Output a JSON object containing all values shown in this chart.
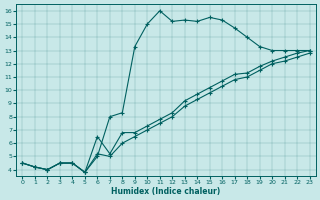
{
  "xlabel": "Humidex (Indice chaleur)",
  "bg_color": "#c8e8e8",
  "line_color": "#006060",
  "xlim": [
    -0.5,
    23.5
  ],
  "ylim": [
    3.5,
    16.5
  ],
  "xticks": [
    0,
    1,
    2,
    3,
    4,
    5,
    6,
    7,
    8,
    9,
    10,
    11,
    12,
    13,
    14,
    15,
    16,
    17,
    18,
    19,
    20,
    21,
    22,
    23
  ],
  "yticks": [
    4,
    5,
    6,
    7,
    8,
    9,
    10,
    11,
    12,
    13,
    14,
    15,
    16
  ],
  "curve1_x": [
    0,
    1,
    2,
    3,
    4,
    5,
    6,
    7,
    8,
    9,
    10,
    11,
    12,
    13,
    14,
    15,
    16,
    17,
    18,
    19,
    20,
    21,
    22,
    23
  ],
  "curve1_y": [
    4.5,
    4.2,
    4.0,
    4.5,
    4.5,
    3.8,
    5.0,
    8.0,
    8.3,
    13.3,
    15.0,
    16.0,
    15.2,
    15.3,
    15.2,
    15.5,
    15.3,
    14.7,
    14.0,
    13.3,
    13.0,
    13.0,
    13.0,
    13.0
  ],
  "curve2_x": [
    0,
    1,
    2,
    3,
    4,
    5,
    6,
    7,
    8,
    9,
    10,
    11,
    12,
    13,
    14,
    15,
    16,
    17,
    18,
    19,
    20,
    21,
    22,
    23
  ],
  "curve2_y": [
    4.5,
    4.2,
    4.0,
    4.5,
    4.5,
    3.8,
    5.2,
    5.0,
    6.0,
    6.5,
    7.0,
    7.5,
    8.0,
    8.8,
    9.3,
    9.8,
    10.3,
    10.8,
    11.0,
    11.5,
    12.0,
    12.2,
    12.5,
    12.8
  ],
  "curve3_x": [
    0,
    1,
    2,
    3,
    4,
    5,
    6,
    7,
    8,
    9,
    10,
    11,
    12,
    13,
    14,
    15,
    16,
    17,
    18,
    19,
    20,
    21,
    22,
    23
  ],
  "curve3_y": [
    4.5,
    4.2,
    4.0,
    4.5,
    4.5,
    3.8,
    6.5,
    5.2,
    6.8,
    6.8,
    7.3,
    7.8,
    8.3,
    9.2,
    9.7,
    10.2,
    10.7,
    11.2,
    11.3,
    11.8,
    12.2,
    12.5,
    12.8,
    13.0
  ]
}
